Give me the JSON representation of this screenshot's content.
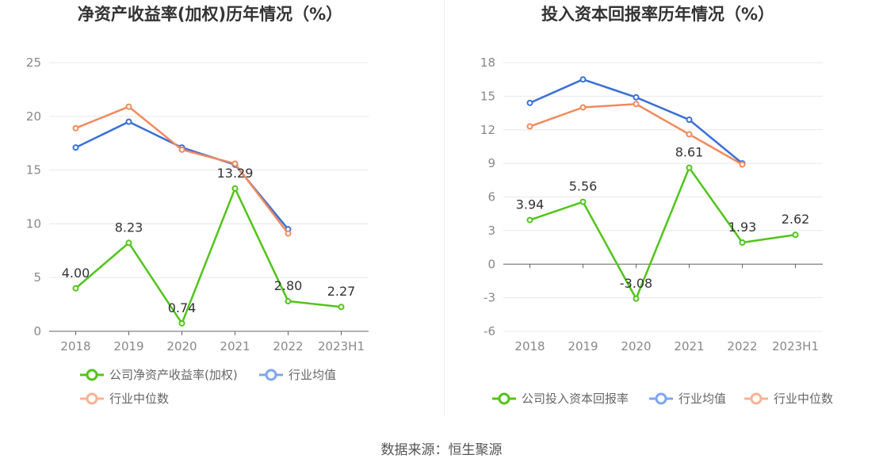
{
  "chart_data": [
    {
      "type": "line",
      "title": "净资产收益率(加权)历年情况（%）",
      "categories": [
        "2018",
        "2019",
        "2020",
        "2021",
        "2022",
        "2023H1"
      ],
      "yticks": [
        "25",
        "20",
        "15",
        "10",
        "5",
        "0"
      ],
      "ylim": [
        0,
        25
      ],
      "series": [
        {
          "name": "公司净资产收益率(加权)",
          "color": "#52c41a",
          "values": [
            4.0,
            8.23,
            0.74,
            13.29,
            2.8,
            2.27
          ],
          "labels": [
            "4.00",
            "8.23",
            "0.74",
            "13.29",
            "2.80",
            "2.27"
          ]
        },
        {
          "name": "行业均值",
          "color": "#3a6fd8",
          "values": [
            17.1,
            19.5,
            17.1,
            15.5,
            9.5,
            null
          ]
        },
        {
          "name": "行业中位数",
          "color": "#f08a5d",
          "values": [
            18.9,
            20.9,
            16.9,
            15.6,
            9.1,
            null
          ]
        }
      ]
    },
    {
      "type": "line",
      "title": "投入资本回报率历年情况（%）",
      "categories": [
        "2018",
        "2019",
        "2020",
        "2021",
        "2022",
        "2023H1"
      ],
      "yticks": [
        "18",
        "15",
        "12",
        "9",
        "6",
        "3",
        "0",
        "-3",
        "-6"
      ],
      "ylim": [
        -6,
        18
      ],
      "series": [
        {
          "name": "公司投入资本回报率",
          "color": "#52c41a",
          "values": [
            3.94,
            5.56,
            -3.08,
            8.61,
            1.93,
            2.62
          ],
          "labels": [
            "3.94",
            "5.56",
            "-3.08",
            "8.61",
            "1.93",
            "2.62"
          ]
        },
        {
          "name": "行业均值",
          "color": "#3a6fd8",
          "values": [
            14.4,
            16.5,
            14.9,
            12.9,
            9.0,
            null
          ]
        },
        {
          "name": "行业中位数",
          "color": "#f08a5d",
          "values": [
            12.3,
            14.0,
            14.3,
            11.6,
            8.9,
            null
          ]
        }
      ]
    }
  ],
  "legend_colors": {
    "company": "#52c41a",
    "avg": "#7ea6f0",
    "median": "#f7b393"
  },
  "source": "数据来源：恒生聚源"
}
